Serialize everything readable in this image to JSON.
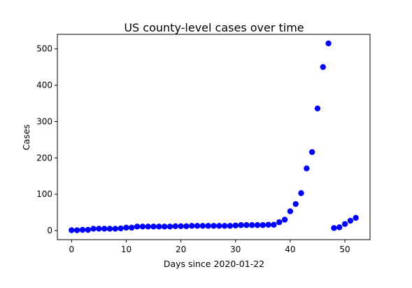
{
  "chart_data": {
    "type": "scatter",
    "title": "US county-level cases over time",
    "xlabel": "Days since 2020-01-22",
    "ylabel": "Cases",
    "xlim": [
      -2.6,
      54.6
    ],
    "ylim": [
      -25,
      540
    ],
    "xticks": [
      0,
      10,
      20,
      30,
      40,
      50
    ],
    "yticks": [
      0,
      100,
      200,
      300,
      400,
      500
    ],
    "grid": false,
    "marker_color": "#0000ff",
    "series": [
      {
        "x": [
          0,
          1,
          2,
          3,
          4,
          5,
          6,
          7,
          8,
          9,
          10,
          11,
          12,
          13,
          14,
          15,
          16,
          17,
          18,
          19,
          20,
          21,
          22,
          23,
          24,
          25,
          26,
          27,
          28,
          29,
          30,
          31,
          32,
          33,
          34,
          35,
          36,
          37,
          38,
          39,
          40,
          41,
          42,
          43,
          44,
          45,
          46,
          47,
          48,
          49,
          50,
          51,
          52
        ],
        "y": [
          1,
          1,
          2,
          2,
          5,
          5,
          5,
          5,
          5,
          6,
          8,
          8,
          11,
          11,
          11,
          11,
          11,
          11,
          11,
          12,
          12,
          12,
          13,
          13,
          13,
          13,
          13,
          13,
          13,
          13,
          14,
          15,
          15,
          15,
          15,
          15,
          16,
          16,
          23,
          30,
          53,
          73,
          103,
          171,
          216,
          336,
          450,
          515,
          7,
          9,
          18,
          27,
          35
        ]
      }
    ]
  }
}
